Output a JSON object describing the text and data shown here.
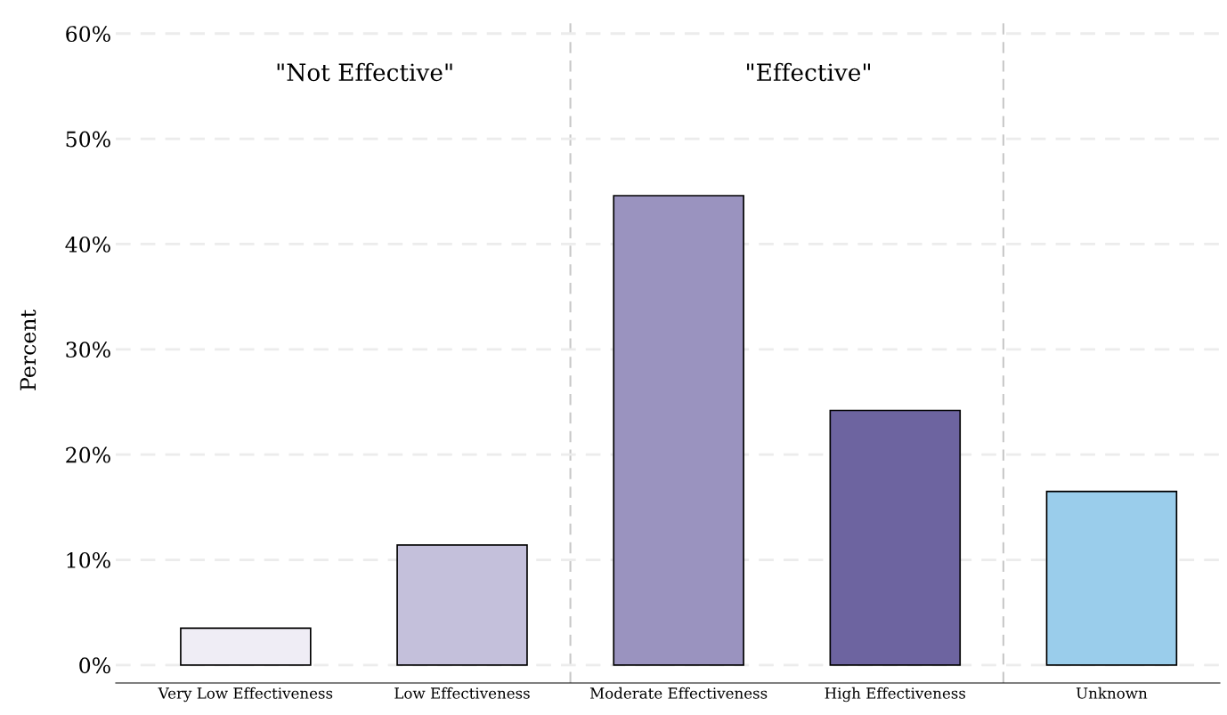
{
  "chart_data": {
    "type": "bar",
    "ylabel": "Percent",
    "categories": [
      "Very Low Effectiveness",
      "Low Effectiveness",
      "Moderate Effectiveness",
      "High Effectiveness",
      "Unknown"
    ],
    "values": [
      3.5,
      11.4,
      44.6,
      24.2,
      16.5
    ],
    "colors": [
      "#efedf5",
      "#c4c0db",
      "#9a93bf",
      "#6d64a0",
      "#9acdeb"
    ],
    "ylim": [
      -1.7,
      61.5
    ],
    "yticks": [
      {
        "value": 0,
        "label": "0%"
      },
      {
        "value": 10,
        "label": "10%"
      },
      {
        "value": 20,
        "label": "20%"
      },
      {
        "value": 30,
        "label": "30%"
      },
      {
        "value": 40,
        "label": "40%"
      },
      {
        "value": 50,
        "label": "50%"
      },
      {
        "value": 60,
        "label": "60%"
      }
    ],
    "grid": "y",
    "annotations": [
      "\"Not Effective\"",
      "\"Effective\""
    ]
  }
}
